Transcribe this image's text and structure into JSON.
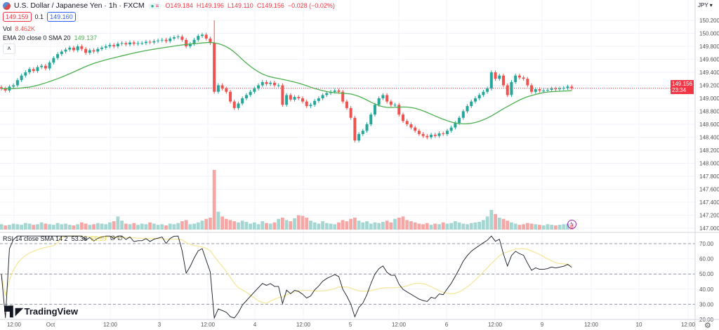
{
  "header": {
    "title": "U.S. Dollar / Japanese Yen · 1h · FXCM",
    "ohlc": {
      "open": "O149.184",
      "high": "H149.196",
      "low": "L149.110",
      "close": "C149.156",
      "change": "−0.028 (−0.02%)"
    },
    "sell_price": "149.159",
    "spread": "0.1",
    "buy_price": "149.160",
    "currency": "JPY"
  },
  "indicators": {
    "vol_label": "Vol",
    "vol_value": "8.462K",
    "ema_label": "EMA 20 close 0 SMA 20",
    "ema_value": "149.137",
    "rsi_label": "RSI 14 close SMA 14 2",
    "rsi_value": "53.38",
    "rsi_sma_value": "55.59",
    "rsi_extra": "∅ ∅"
  },
  "current_price": {
    "price": "149.156",
    "countdown": "23:34"
  },
  "branding": "TradingView",
  "colors": {
    "up": "#26a69a",
    "down": "#ef5350",
    "ema": "#4caf50",
    "rsi": "#131722",
    "rsi_sma": "#f5e79e",
    "price_label": "#f23645"
  },
  "icons": {
    "logo": "tradingview-logo",
    "settings": "gear-icon",
    "collapse": "chevron-up-icon",
    "alert": "lightning-icon"
  },
  "chart_data": {
    "type": "candlestick",
    "interval": "1h",
    "price_axis": {
      "ticks": [
        "150.200",
        "150.000",
        "149.800",
        "149.600",
        "149.400",
        "149.200",
        "149.000",
        "148.800",
        "148.600",
        "148.400",
        "148.200",
        "148.000",
        "147.800",
        "147.600",
        "147.400",
        "147.200",
        "147.000"
      ],
      "range": [
        147.0,
        150.2
      ]
    },
    "rsi_axis": {
      "ticks": [
        "70.00",
        "60.00",
        "50.00",
        "40.00",
        "30.00",
        "20.00"
      ],
      "range": [
        20,
        75
      ],
      "levels": [
        70,
        50,
        30
      ]
    },
    "time_axis": [
      "12:00",
      "Oct",
      "12:00",
      "3",
      "12:00",
      "4",
      "12:00",
      "5",
      "12:00",
      "6",
      "12:00",
      "9",
      "12:00",
      "10",
      "12:00"
    ],
    "spike": {
      "index": 53,
      "high": 150.2
    },
    "closes": [
      149.15,
      149.12,
      149.18,
      149.2,
      149.28,
      149.35,
      149.4,
      149.45,
      149.42,
      149.48,
      149.5,
      149.46,
      149.55,
      149.62,
      149.68,
      149.72,
      149.75,
      149.78,
      149.74,
      149.8,
      149.76,
      149.7,
      149.74,
      149.72,
      149.76,
      149.78,
      149.8,
      149.82,
      149.8,
      149.84,
      149.85,
      149.83,
      149.86,
      149.84,
      149.85,
      149.85,
      149.87,
      149.86,
      149.88,
      149.89,
      149.9,
      149.88,
      149.92,
      149.94,
      149.95,
      149.9,
      149.8,
      149.84,
      149.9,
      149.96,
      149.98,
      149.92,
      149.85,
      149.1,
      149.2,
      149.15,
      149.1,
      148.95,
      148.85,
      148.92,
      149.0,
      149.05,
      149.1,
      149.15,
      149.2,
      149.25,
      149.22,
      149.24,
      149.2,
      149.2,
      148.9,
      149.05,
      148.98,
      149.02,
      149.0,
      148.95,
      148.88,
      148.9,
      148.96,
      149.0,
      149.05,
      149.08,
      149.1,
      149.12,
      149.1,
      148.95,
      148.85,
      148.7,
      148.35,
      148.45,
      148.5,
      148.6,
      148.75,
      148.9,
      149.0,
      149.05,
      148.95,
      148.9,
      148.9,
      148.75,
      148.65,
      148.6,
      148.55,
      148.5,
      148.45,
      148.42,
      148.4,
      148.44,
      148.42,
      148.46,
      148.45,
      148.5,
      148.55,
      148.62,
      148.7,
      148.8,
      148.88,
      148.95,
      149.0,
      149.05,
      149.1,
      149.15,
      149.4,
      149.3,
      149.35,
      149.2,
      149.05,
      149.25,
      149.35,
      149.32,
      149.3,
      149.2,
      149.1,
      149.14,
      149.12,
      149.12,
      149.13,
      149.15,
      149.14,
      149.15,
      149.16,
      149.18,
      149.156
    ],
    "volumes_k": [
      9,
      7,
      8,
      10,
      9,
      8,
      11,
      10,
      8,
      9,
      12,
      10,
      9,
      8,
      11,
      9,
      10,
      8,
      7,
      9,
      12,
      10,
      8,
      9,
      11,
      10,
      9,
      12,
      14,
      22,
      15,
      10,
      9,
      11,
      8,
      10,
      9,
      12,
      10,
      8,
      9,
      7,
      10,
      9,
      11,
      14,
      16,
      9,
      10,
      12,
      15,
      18,
      20,
      100,
      30,
      22,
      18,
      16,
      14,
      12,
      15,
      13,
      10,
      12,
      9,
      14,
      11,
      10,
      12,
      18,
      20,
      16,
      14,
      19,
      24,
      23,
      20,
      15,
      12,
      10,
      14,
      11,
      10,
      9,
      12,
      16,
      14,
      18,
      20,
      15,
      12,
      14,
      10,
      12,
      11,
      13,
      15,
      12,
      18,
      20,
      22,
      16,
      14,
      12,
      10,
      9,
      11,
      8,
      10,
      9,
      12,
      10,
      11,
      14,
      12,
      10,
      9,
      11,
      12,
      13,
      16,
      22,
      33,
      26,
      20,
      18,
      15,
      12,
      10,
      8,
      9,
      11,
      10,
      9,
      8,
      7,
      9,
      8,
      7,
      8,
      9,
      10,
      8.462
    ]
  }
}
